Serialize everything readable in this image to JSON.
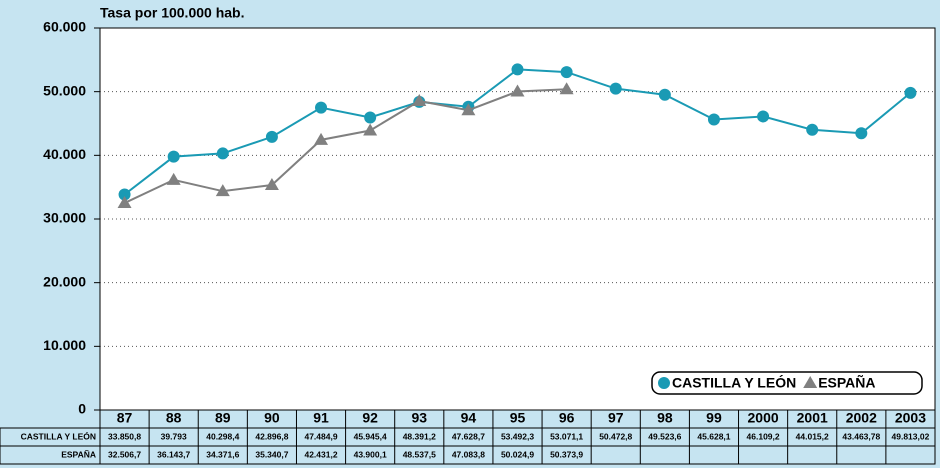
{
  "chart_data": {
    "type": "line",
    "subtitle": "Tasa por 100.000 hab.",
    "categories": [
      "87",
      "88",
      "89",
      "90",
      "91",
      "92",
      "93",
      "94",
      "95",
      "96",
      "97",
      "98",
      "99",
      "2000",
      "2001",
      "2002",
      "2003"
    ],
    "series": [
      {
        "name": "CASTILLA Y LEÓN",
        "color": "#1a9ab4",
        "marker": "circle",
        "values": [
          33850.8,
          39793,
          40298.4,
          42896.8,
          47484.9,
          45945.4,
          48391.2,
          47628.7,
          53492.3,
          53071.1,
          50472.8,
          49523.6,
          45628.1,
          46109.2,
          44015.2,
          43463.78,
          49813.02
        ],
        "value_labels": [
          "33.850,8",
          "39.793",
          "40.298,4",
          "42.896,8",
          "47.484,9",
          "45.945,4",
          "48.391,2",
          "47.628,7",
          "53.492,3",
          "53.071,1",
          "50.472,8",
          "49.523,6",
          "45.628,1",
          "46.109,2",
          "44.015,2",
          "43.463,78",
          "49.813,02"
        ]
      },
      {
        "name": "ESPAÑA",
        "color": "#808080",
        "marker": "triangle",
        "values": [
          32506.7,
          36143.7,
          34371.6,
          35340.7,
          42431.2,
          43900.1,
          48537.5,
          47083.8,
          50024.9,
          50373.9,
          null,
          null,
          null,
          null,
          null,
          null,
          null
        ],
        "value_labels": [
          "32.506,7",
          "36.143,7",
          "34.371,6",
          "35.340,7",
          "42.431,2",
          "43.900,1",
          "48.537,5",
          "47.083,8",
          "50.024,9",
          "50.373,9",
          null,
          null,
          null,
          null,
          null,
          null,
          null
        ]
      }
    ],
    "ylim": [
      0,
      60000
    ],
    "yticks": [
      0,
      {
        "value": 10000,
        "label": "10.000"
      },
      {
        "value": 20000,
        "label": "20.000"
      },
      {
        "value": 30000,
        "label": "30.000"
      },
      {
        "value": 40000,
        "label": "40.000"
      },
      {
        "value": 50000,
        "label": "50.000"
      },
      {
        "value": 60000,
        "label": "60.000"
      }
    ],
    "grid": true,
    "legend": "lower right"
  }
}
